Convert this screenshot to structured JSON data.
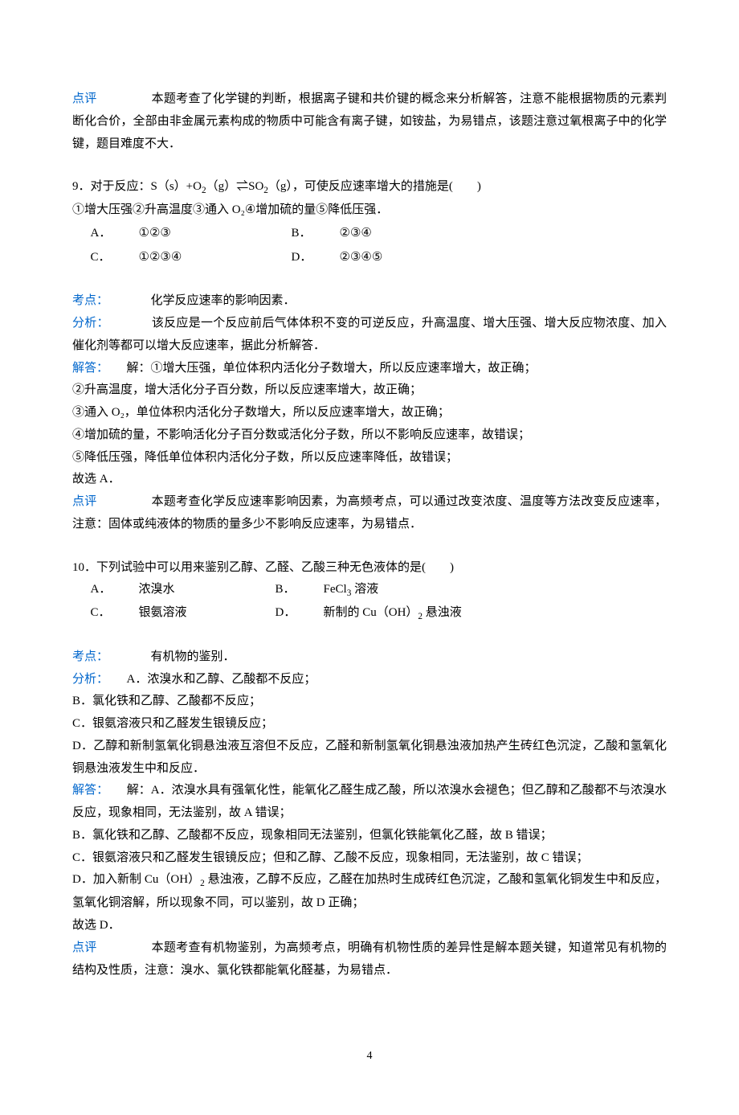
{
  "colors": {
    "blue": "#0066cc",
    "black": "#000000",
    "background": "#ffffff"
  },
  "typography": {
    "body_fontsize_pt": 11,
    "line_height": 1.85,
    "font_family": "SimSun"
  },
  "q8_review": {
    "label": "点评",
    "text": "本题考查了化学键的判断，根据离子键和共价键的概念来分析解答，注意不能根据物质的元素判断化合价，全部由非金属元素构成的物质中可能含有离子键，如铵盐，为易错点，该题注意过氧根离子中的化学键，题目难度不大．"
  },
  "q9": {
    "stem_prefix": "9．对于反应：S（s）+O",
    "stem_mid1": "（g）⇌SO",
    "stem_mid2": "（g），可使反应速率增大的措施是(　　)",
    "stem_line2": "①增大压强②升高温度③通入 O₂④增加硫的量⑤降低压强．",
    "opts": {
      "A_label": "A．",
      "A_val": "①②③",
      "B_label": "B．",
      "B_val": "②③④",
      "C_label": "C．",
      "C_val": "①②③④",
      "D_label": "D．",
      "D_val": "②③④⑤"
    },
    "kaodian_label": "考点：",
    "kaodian_text": "化学反应速率的影响因素．",
    "fenxi_label": "分析：",
    "fenxi_text": "该反应是一个反应前后气体体积不变的可逆反应，升高温度、增大压强、增大反应物浓度、加入催化剂等都可以增大反应速率，据此分析解答．",
    "jieda_label": "解答：",
    "jieda_p1": "解：①增大压强，单位体积内活化分子数增大，所以反应速率增大，故正确；",
    "jieda_p2": "②升高温度，增大活化分子百分数，所以反应速率增大，故正确；",
    "jieda_p3": "③通入 O₂，单位体积内活化分子数增大，所以反应速率增大，故正确；",
    "jieda_p4": "④增加硫的量，不影响活化分子百分数或活化分子数，所以不影响反应速率，故错误；",
    "jieda_p5": "⑤降低压强，降低单位体积内活化分子数，所以反应速率降低，故错误；",
    "jieda_p6": "故选 A．",
    "dianping_label": "点评",
    "dianping_text": "本题考查化学反应速率影响因素，为高频考点，可以通过改变浓度、温度等方法改变反应速率，注意：固体或纯液体的物质的量多少不影响反应速率，为易错点．"
  },
  "q10": {
    "stem": "10．下列试验中可以用来鉴别乙醇、乙醛、乙酸三种无色液体的是(　　)",
    "opts": {
      "A_label": "A．",
      "A_val": "浓溴水",
      "B_label": "B．",
      "B_val_prefix": "FeCl",
      "B_val_suffix": " 溶液",
      "C_label": "C．",
      "C_val": "银氨溶液",
      "D_label": "D．",
      "D_val_prefix": "新制的 Cu（OH）",
      "D_val_suffix": " 悬浊液"
    },
    "kaodian_label": "考点：",
    "kaodian_text": "有机物的鉴别．",
    "fenxi_label": "分析：",
    "fenxi_p1": "A．浓溴水和乙醇、乙酸都不反应；",
    "fenxi_p2": "B．氯化铁和乙醇、乙酸都不反应；",
    "fenxi_p3": "C．银氨溶液只和乙醛发生银镜反应；",
    "fenxi_p4": "D．乙醇和新制氢氧化铜悬浊液互溶但不反应，乙醛和新制氢氧化铜悬浊液加热产生砖红色沉淀，乙酸和氢氧化铜悬浊液发生中和反应．",
    "jieda_label": "解答：",
    "jieda_p1": "解：A．浓溴水具有强氧化性，能氧化乙醛生成乙酸，所以浓溴水会褪色；但乙醇和乙酸都不与浓溴水反应，现象相同，无法鉴别，故 A 错误；",
    "jieda_p2": "B．氯化铁和乙醇、乙酸都不反应，现象相同无法鉴别，但氯化铁能氧化乙醛，故 B 错误；",
    "jieda_p3": "C．银氨溶液只和乙醛发生银镜反应；但和乙醇、乙酸不反应，现象相同，无法鉴别，故 C 错误；",
    "jieda_p4_prefix": "D．加入新制 Cu（OH）",
    "jieda_p4_suffix": " 悬浊液，乙醇不反应，乙醛在加热时生成砖红色沉淀，乙酸和氢氧化铜发生中和反应，氢氧化铜溶解，所以现象不同，可以鉴别，故 D 正确；",
    "jieda_p5": "故选 D．",
    "dianping_label": "点评",
    "dianping_text": "本题考查有机物鉴别，为高频考点，明确有机物性质的差异性是解本题关键，知道常见有机物的结构及性质，注意：溴水、氯化铁都能氧化醛基，为易错点．"
  },
  "page_number": "4"
}
